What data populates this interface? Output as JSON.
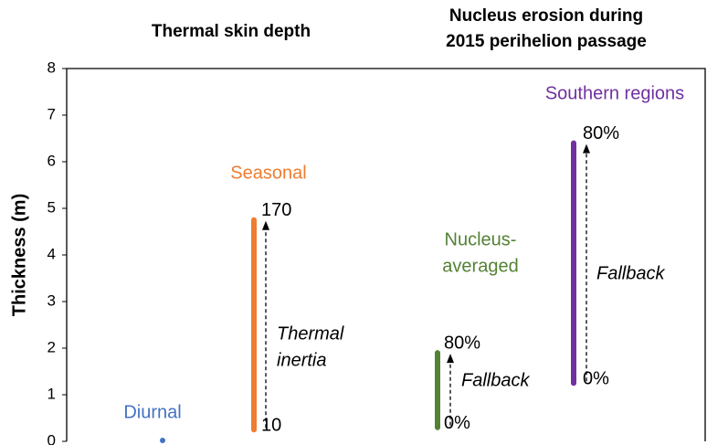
{
  "chart_data": {
    "type": "range",
    "headers": [
      [
        "Thermal skin depth"
      ],
      [
        "Nucleus erosion during",
        "2015 perihelion passage"
      ]
    ],
    "ylabel": "Thickness (m)",
    "ylim": [
      0,
      8
    ],
    "yticks": [
      0,
      1,
      2,
      3,
      4,
      5,
      6,
      7,
      8
    ],
    "series": [
      {
        "name": [
          "Diurnal"
        ],
        "color": "#4472c4",
        "low": 0.02,
        "high": 0.02
      },
      {
        "name": [
          "Seasonal"
        ],
        "color": "#ed7d31",
        "low": 0.25,
        "high": 4.75,
        "arrow_label": [
          "Thermal",
          "inertia"
        ],
        "low_label": "10",
        "high_label": "170"
      },
      {
        "name": [
          "Nucleus-",
          "averaged"
        ],
        "color": "#548235",
        "low": 0.3,
        "high": 1.9,
        "arrow_label": [
          "Fallback"
        ],
        "low_label": "0%",
        "high_label": "80%"
      },
      {
        "name": [
          "Southern regions"
        ],
        "color": "#7030a0",
        "low": 1.25,
        "high": 6.4,
        "arrow_label": [
          "Fallback"
        ],
        "low_label": "0%",
        "high_label": "80%"
      }
    ]
  }
}
